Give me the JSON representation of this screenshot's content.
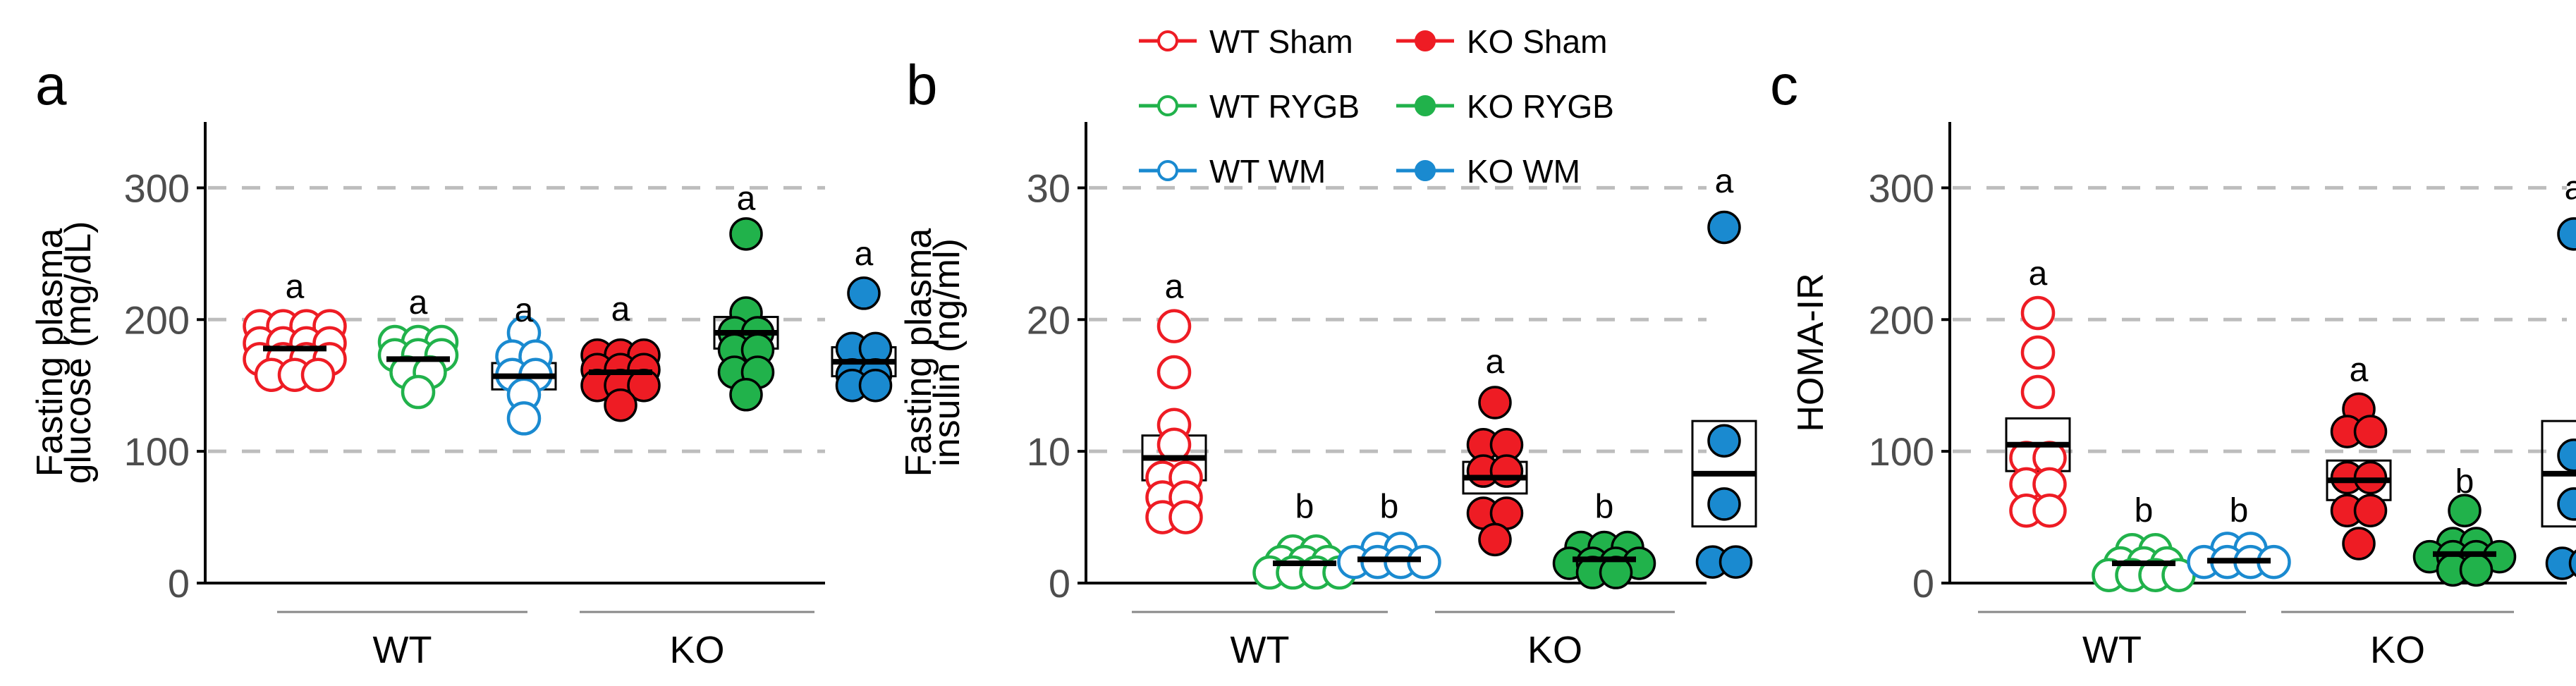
{
  "legend": [
    {
      "label": "WT Sham",
      "color": "#ee1c24",
      "filled": false
    },
    {
      "label": "KO Sham",
      "color": "#ee1c24",
      "filled": true
    },
    {
      "label": "WT RYGB",
      "color": "#21b24b",
      "filled": false
    },
    {
      "label": "KO RYGB",
      "color": "#21b24b",
      "filled": true
    },
    {
      "label": "WT WM",
      "color": "#1a8ad0",
      "filled": false
    },
    {
      "label": "KO WM",
      "color": "#1a8ad0",
      "filled": true
    }
  ],
  "chart_data": [
    {
      "type": "scatter",
      "panel_label": "a",
      "ylabel_lines": [
        "Fasting plasma",
        "glucose (mg/dL)"
      ],
      "ylim": [
        0,
        350
      ],
      "yticks": [
        "0",
        "100",
        "200",
        "300"
      ],
      "gridlines": [
        100,
        200,
        300
      ],
      "genotypes": [
        "WT",
        "KO"
      ],
      "series": [
        {
          "name": "WT Sham",
          "color": "#ee1c24",
          "filled": false,
          "mean": 178,
          "sem": 4,
          "letter": "a",
          "letter_y": 225,
          "values": [
            195,
            195,
            195,
            195,
            182,
            182,
            182,
            182,
            170,
            170,
            170,
            170,
            158,
            158,
            158
          ]
        },
        {
          "name": "WT RYGB",
          "color": "#21b24b",
          "filled": false,
          "mean": 170,
          "sem": 4,
          "letter": "a",
          "letter_y": 213,
          "values": [
            183,
            183,
            183,
            173,
            173,
            173,
            160,
            160,
            145
          ]
        },
        {
          "name": "WT WM",
          "color": "#1a8ad0",
          "filled": false,
          "mean": 157,
          "sem": 10,
          "letter": "a",
          "letter_y": 207,
          "values": [
            190,
            172,
            172,
            158,
            158,
            143,
            125
          ]
        },
        {
          "name": "KO Sham",
          "color": "#ee1c24",
          "filled": true,
          "mean": 160,
          "sem": 4,
          "letter": "a",
          "letter_y": 208,
          "values": [
            173,
            173,
            173,
            162,
            162,
            162,
            150,
            150,
            150,
            135
          ]
        },
        {
          "name": "KO RYGB",
          "color": "#21b24b",
          "filled": true,
          "mean": 190,
          "sem": 12,
          "letter": "a",
          "letter_y": 292,
          "values": [
            265,
            205,
            190,
            190,
            177,
            177,
            160,
            160,
            143
          ]
        },
        {
          "name": "KO WM",
          "color": "#1a8ad0",
          "filled": true,
          "mean": 168,
          "sem": 11,
          "letter": "a",
          "letter_y": 250,
          "values": [
            220,
            178,
            178,
            158,
            158,
            150,
            150
          ]
        }
      ]
    },
    {
      "type": "scatter",
      "panel_label": "b",
      "ylabel_lines": [
        "Fasting plasma",
        "insulin (ng/ml)"
      ],
      "ylim": [
        0,
        35
      ],
      "yticks": [
        "0",
        "10",
        "20",
        "30"
      ],
      "gridlines": [
        10,
        20,
        30
      ],
      "genotypes": [
        "WT",
        "KO"
      ],
      "series": [
        {
          "name": "WT Sham",
          "color": "#ee1c24",
          "filled": false,
          "mean": 9.5,
          "sem": 1.7,
          "letter": "a",
          "letter_y": 22.5,
          "values": [
            19.5,
            16.0,
            12.0,
            10.5,
            8.0,
            8.0,
            6.5,
            6.5,
            5.0,
            5.0
          ]
        },
        {
          "name": "WT RYGB",
          "color": "#21b24b",
          "filled": false,
          "mean": 1.5,
          "sem": 0.25,
          "letter": "b",
          "letter_y": 5.8,
          "values": [
            2.4,
            2.4,
            1.6,
            1.6,
            1.6,
            0.8,
            0.8,
            0.8,
            0.8
          ]
        },
        {
          "name": "WT WM",
          "color": "#1a8ad0",
          "filled": false,
          "mean": 1.8,
          "sem": 0.25,
          "letter": "b",
          "letter_y": 5.8,
          "values": [
            2.6,
            2.6,
            1.6,
            1.6,
            1.6,
            1.6
          ]
        },
        {
          "name": "KO Sham",
          "color": "#ee1c24",
          "filled": true,
          "mean": 8.0,
          "sem": 1.2,
          "letter": "a",
          "letter_y": 16.8,
          "values": [
            13.7,
            10.5,
            10.5,
            8.5,
            8.5,
            5.3,
            5.3,
            3.3
          ]
        },
        {
          "name": "KO RYGB",
          "color": "#21b24b",
          "filled": true,
          "mean": 1.8,
          "sem": 0.2,
          "letter": "b",
          "letter_y": 5.8,
          "values": [
            2.7,
            2.7,
            2.7,
            1.5,
            1.5,
            1.5,
            1.5,
            0.8,
            0.8
          ]
        },
        {
          "name": "KO WM",
          "color": "#1a8ad0",
          "filled": true,
          "mean": 8.3,
          "sem": 4.0,
          "letter": "a",
          "letter_y": 30.5,
          "values": [
            27.0,
            10.8,
            6.0,
            1.6,
            1.6
          ]
        }
      ]
    },
    {
      "type": "scatter",
      "panel_label": "c",
      "ylabel_lines": [
        "HOMA-IR"
      ],
      "ylim": [
        0,
        350
      ],
      "yticks": [
        "0",
        "100",
        "200",
        "300"
      ],
      "gridlines": [
        100,
        200,
        300
      ],
      "genotypes": [
        "WT",
        "KO"
      ],
      "series": [
        {
          "name": "WT Sham",
          "color": "#ee1c24",
          "filled": false,
          "mean": 105,
          "sem": 20,
          "letter": "a",
          "letter_y": 235,
          "values": [
            205,
            175,
            145,
            95,
            95,
            75,
            75,
            55,
            55
          ]
        },
        {
          "name": "WT RYGB",
          "color": "#21b24b",
          "filled": false,
          "mean": 15,
          "sem": 3,
          "letter": "b",
          "letter_y": 55,
          "values": [
            25,
            25,
            15,
            15,
            15,
            6,
            6,
            6,
            6
          ]
        },
        {
          "name": "WT WM",
          "color": "#1a8ad0",
          "filled": false,
          "mean": 17,
          "sem": 2,
          "letter": "b",
          "letter_y": 55,
          "values": [
            26,
            26,
            16,
            16,
            16,
            16
          ]
        },
        {
          "name": "KO Sham",
          "color": "#ee1c24",
          "filled": true,
          "mean": 78,
          "sem": 15,
          "letter": "a",
          "letter_y": 162,
          "values": [
            132,
            115,
            115,
            80,
            80,
            55,
            55,
            30
          ]
        },
        {
          "name": "KO RYGB",
          "color": "#21b24b",
          "filled": true,
          "mean": 22,
          "sem": 5,
          "letter": "b",
          "letter_y": 77,
          "values": [
            55,
            30,
            30,
            20,
            20,
            20,
            20,
            10,
            10
          ]
        },
        {
          "name": "KO WM",
          "color": "#1a8ad0",
          "filled": true,
          "mean": 83,
          "sem": 40,
          "letter": "a",
          "letter_y": 300,
          "values": [
            265,
            97,
            60,
            15,
            15
          ]
        }
      ]
    }
  ]
}
